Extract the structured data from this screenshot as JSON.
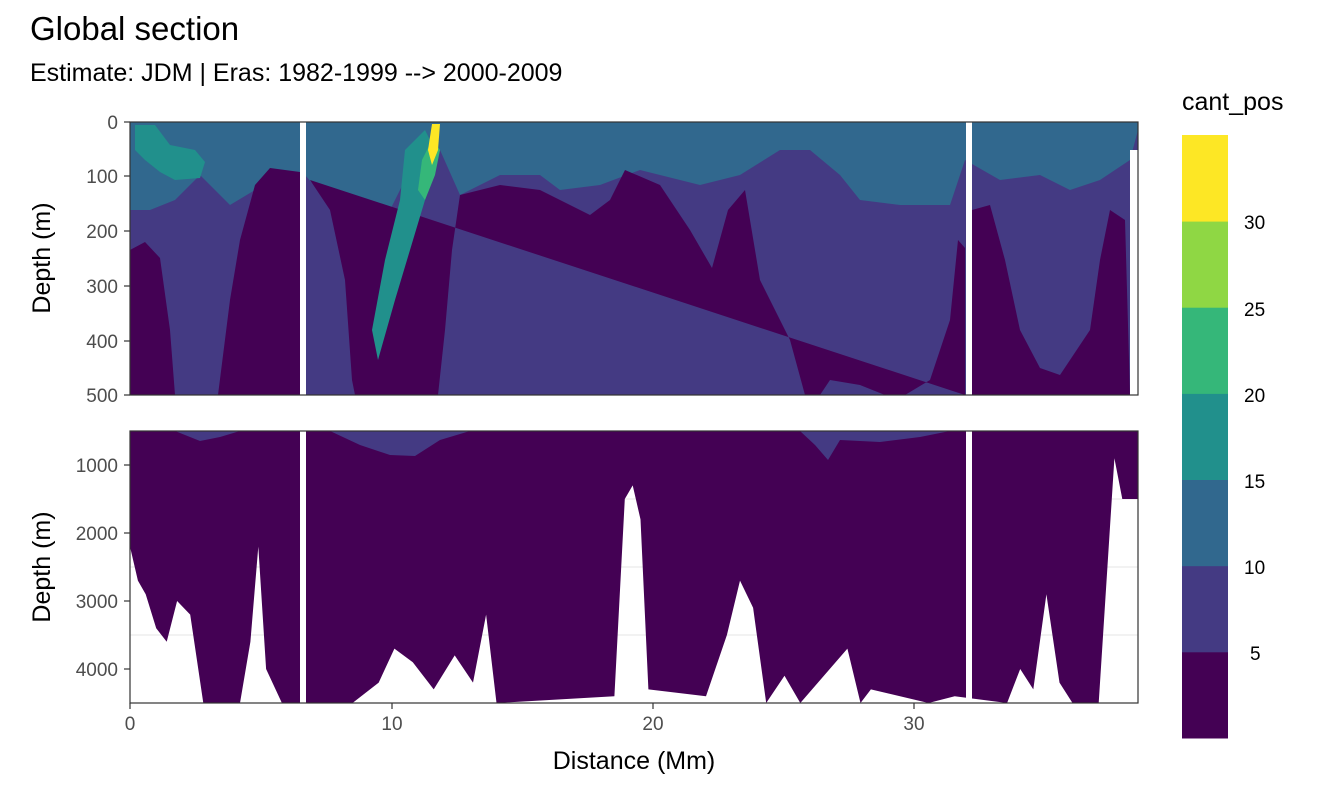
{
  "title": "Global section",
  "subtitle": "Estimate: JDM  | Eras: 1982-1999 --> 2000-2009",
  "chart_data": {
    "type": "heatmap",
    "title": "Global section",
    "subtitle": "Estimate: JDM  | Eras: 1982-1999 --> 2000-2009",
    "xlabel": "Distance (Mm)",
    "ylabel": "Depth (m)",
    "x_range": [
      0,
      38.5
    ],
    "x_ticks": [
      0,
      10,
      20,
      30
    ],
    "fill_variable": "cant_pos",
    "legend": {
      "title": "cant_pos",
      "placement": "right",
      "breaks": [
        5,
        10,
        15,
        20,
        25,
        30
      ],
      "bins": [
        {
          "range": [
            0,
            5
          ],
          "color": "#440154"
        },
        {
          "range": [
            5,
            10
          ],
          "color": "#443A83"
        },
        {
          "range": [
            10,
            15
          ],
          "color": "#31688E"
        },
        {
          "range": [
            15,
            20
          ],
          "color": "#21908C"
        },
        {
          "range": [
            20,
            25
          ],
          "color": "#35B779"
        },
        {
          "range": [
            25,
            30
          ],
          "color": "#8FD744"
        },
        {
          "range": [
            30,
            35
          ],
          "color": "#FDE725"
        }
      ]
    },
    "panels": [
      {
        "name": "upper",
        "depth_range": [
          0,
          500
        ],
        "y_ticks": [
          0,
          100,
          200,
          300,
          400,
          500
        ],
        "gaps_distance": [
          6.6,
          32.2
        ],
        "bands": [
          {
            "value_bin": 1,
            "depth_top_profile": [
              [
                0.2,
                0
              ],
              [
                2,
                170
              ],
              [
                3.5,
                210
              ],
              [
                4.5,
                95
              ],
              [
                6.5,
                100
              ]
            ]
          },
          {
            "value_bin": 2,
            "depth_top_profile": [
              [
                0.2,
                0
              ],
              [
                1.2,
                100
              ],
              [
                2,
                165
              ],
              [
                6.5,
                90
              ]
            ]
          },
          {
            "value_bin": 3,
            "depth_top_profile": [
              [
                0.2,
                0
              ],
              [
                1.5,
                50
              ],
              [
                2.5,
                120
              ]
            ]
          },
          {
            "value_bin": 6,
            "depth_top_profile": [
              [
                11.5,
                0
              ],
              [
                11.8,
                80
              ]
            ]
          }
        ]
      },
      {
        "name": "lower",
        "depth_range": [
          500,
          4500
        ],
        "y_ticks": [
          1000,
          2000,
          3000,
          4000
        ],
        "gaps_distance": [
          6.6,
          32.2
        ],
        "seafloor_depth": [
          [
            0,
            2200
          ],
          [
            0.3,
            2700
          ],
          [
            0.6,
            2900
          ],
          [
            1,
            3400
          ],
          [
            1.4,
            3600
          ],
          [
            1.8,
            3000
          ],
          [
            2.3,
            3200
          ],
          [
            2.8,
            4500
          ],
          [
            4.2,
            4500
          ],
          [
            4.6,
            3600
          ],
          [
            4.9,
            2200
          ],
          [
            5.2,
            4000
          ],
          [
            5.8,
            4500
          ],
          [
            8.5,
            4500
          ],
          [
            9.5,
            4200
          ],
          [
            10.1,
            3700
          ],
          [
            10.8,
            3900
          ],
          [
            11.6,
            4300
          ],
          [
            12.4,
            3800
          ],
          [
            13.1,
            4200
          ],
          [
            13.6,
            3200
          ],
          [
            14,
            4500
          ],
          [
            18.5,
            4400
          ],
          [
            18.9,
            1500
          ],
          [
            19.2,
            1300
          ],
          [
            19.5,
            1800
          ],
          [
            19.8,
            4300
          ],
          [
            22,
            4400
          ],
          [
            22.8,
            3500
          ],
          [
            23.3,
            2700
          ],
          [
            23.8,
            3100
          ],
          [
            24.3,
            4500
          ],
          [
            25,
            4100
          ],
          [
            25.6,
            4500
          ],
          [
            27.4,
            3700
          ],
          [
            27.9,
            4500
          ],
          [
            28.3,
            4300
          ],
          [
            30.5,
            4500
          ],
          [
            31.5,
            4400
          ],
          [
            33.5,
            4500
          ],
          [
            34,
            4000
          ],
          [
            34.5,
            4300
          ],
          [
            35,
            2900
          ],
          [
            35.5,
            4200
          ],
          [
            36,
            4500
          ],
          [
            37,
            4500
          ],
          [
            37.6,
            900
          ],
          [
            37.9,
            1500
          ]
        ]
      }
    ],
    "grid": true
  }
}
